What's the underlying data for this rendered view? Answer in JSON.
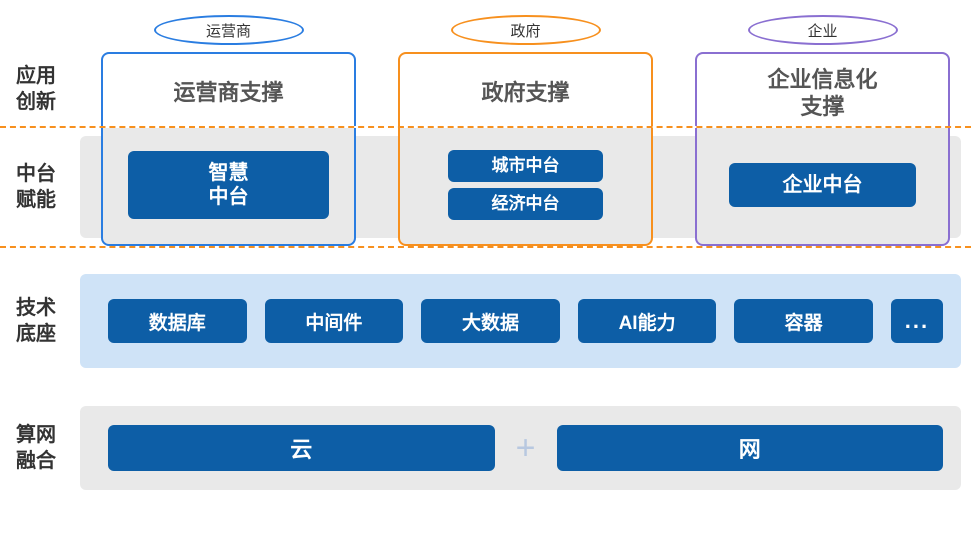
{
  "type": "infographic",
  "layout": "4-row layered architecture",
  "colors": {
    "blue": "#2a7de1",
    "orange": "#f7901e",
    "purple": "#8a6fd1",
    "pill_fill": "#0d5ea6",
    "pill_text": "#ffffff",
    "grey_bg": "#e9e9e9",
    "lightblue_bg": "#cfe3f7",
    "text_dark": "#333333",
    "text_mid": "#555555",
    "plus": "#b8c8e0"
  },
  "rows": {
    "app": {
      "label": "应用\n创新",
      "columns": [
        {
          "ellipse": "运营商",
          "ellipse_color": "#2a7de1",
          "box_title": "运营商支撑",
          "box_color": "#2a7de1"
        },
        {
          "ellipse": "政府",
          "ellipse_color": "#f7901e",
          "box_title": "政府支撑",
          "box_color": "#f7901e"
        },
        {
          "ellipse": "企业",
          "ellipse_color": "#8a6fd1",
          "box_title": "企业信息化\n支撑",
          "box_color": "#8a6fd1"
        }
      ]
    },
    "mid": {
      "label": "中台\n赋能",
      "bg_color": "#e9e9e9",
      "columns": [
        {
          "box_color": "#2a7de1",
          "pills": [
            "智慧\n中台"
          ],
          "pill_style": "big"
        },
        {
          "box_color": "#f7901e",
          "pills": [
            "城市中台",
            "经济中台"
          ],
          "pill_style": "small"
        },
        {
          "box_color": "#8a6fd1",
          "pills": [
            "企业中台"
          ],
          "pill_style": "wide"
        }
      ]
    },
    "tech": {
      "label": "技术\n底座",
      "bg_color": "#cfe3f7",
      "items": [
        "数据库",
        "中间件",
        "大数据",
        "AI能力",
        "容器",
        "..."
      ]
    },
    "net": {
      "label": "算网\n融合",
      "bg_color": "#e9e9e9",
      "left": "云",
      "plus": "+",
      "right": "网"
    }
  },
  "style": {
    "row_label_fontsize": 20,
    "ellipse_fontsize": 15,
    "app_title_fontsize": 22,
    "pill_fontsize": 19,
    "border_radius": 6,
    "dash_color": "#f7901e"
  }
}
